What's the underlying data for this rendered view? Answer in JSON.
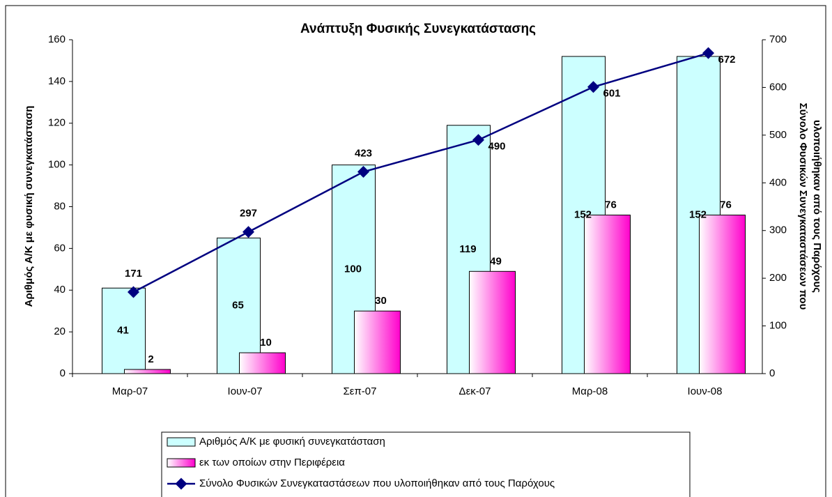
{
  "chart_data": {
    "type": "bar-line",
    "title": "Ανάπτυξη Φυσικής Συνεγκατάστασης",
    "ylabel": "Αριθμός Α/Κ με φυσική συνεγκατάσταση",
    "y2label": [
      "Σύνολο Φυσικών Συνεγκαταστάσεων που",
      "υλοποιήθηκαν από τους Παρόχους"
    ],
    "categories": [
      "Μαρ-07",
      "Ιουν-07",
      "Σεπ-07",
      "Δεκ-07",
      "Μαρ-08",
      "Ιουν-08"
    ],
    "series": [
      {
        "name": "Αριθμός Α/Κ με φυσική συνεγκατάσταση",
        "type": "bar",
        "color": "#ccffff",
        "values": [
          41,
          65,
          100,
          119,
          152,
          152
        ]
      },
      {
        "name": "εκ των οποίων στην Περιφέρεια",
        "type": "bar",
        "color": "#ff00cc",
        "values": [
          2,
          10,
          30,
          49,
          76,
          76
        ]
      },
      {
        "name": "Σύνολο Φυσικών Συνεγκαταστάσεων που υλοποιήθηκαν από τους Παρόχους",
        "type": "line",
        "axis": "y2",
        "color": "#000080",
        "values": [
          171,
          297,
          423,
          490,
          601,
          672
        ]
      }
    ],
    "ylim": [
      0,
      160
    ],
    "yticks": [
      0,
      20,
      40,
      60,
      80,
      100,
      120,
      140,
      160
    ],
    "y2lim": [
      0,
      700
    ],
    "y2ticks": [
      0,
      100,
      200,
      300,
      400,
      500,
      600,
      700
    ]
  }
}
